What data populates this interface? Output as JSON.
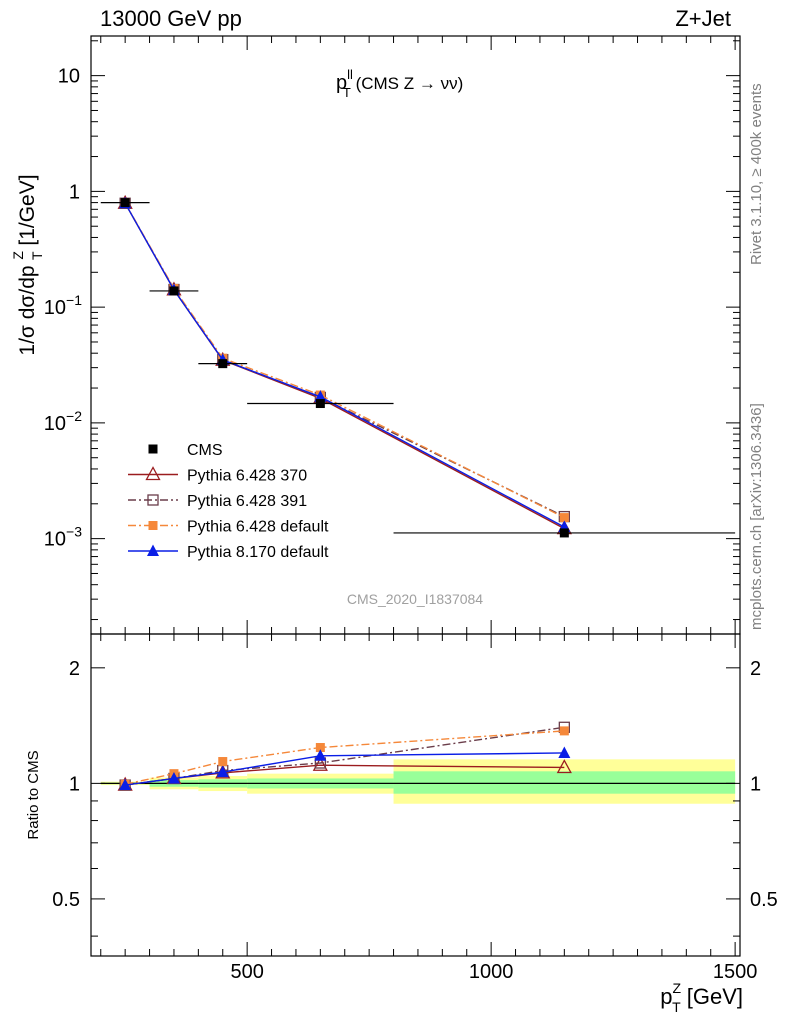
{
  "header": {
    "left": "13000 GeV pp",
    "right": "Z+Jet"
  },
  "side_labels": {
    "rivet": "Rivet 3.1.10, ≥ 400k events",
    "mcplots": "mcplots.cern.ch [arXiv:1306.3436]"
  },
  "analysis_id": "CMS_2020_I1837084",
  "chart_data": [
    {
      "type": "line",
      "panel": "main",
      "title_main": "p",
      "title_sup": "ll",
      "title_sub": "T",
      "title_rest": " (CMS Z → νν)",
      "ylabel": "1/σ dσ/dp_T^Z [1/GeV]",
      "yscale": "log",
      "ylim": [
        0.00015,
        22
      ],
      "xlim": [
        180,
        1510
      ],
      "ytick_labels": [
        {
          "value": 10,
          "base": "10",
          "exp": ""
        },
        {
          "value": 1,
          "base": "1",
          "exp": ""
        },
        {
          "value": 0.1,
          "base": "10",
          "exp": "−1"
        },
        {
          "value": 0.01,
          "base": "10",
          "exp": "−2"
        },
        {
          "value": 0.001,
          "base": "10",
          "exp": "−3"
        }
      ],
      "legend_position": "lower-left",
      "data": {
        "name": "CMS",
        "color": "#000000",
        "x": [
          250,
          350,
          450,
          650,
          1150
        ],
        "y": [
          0.8,
          0.138,
          0.0325,
          0.0147,
          0.00112
        ],
        "xerr": [
          [
            200,
            300
          ],
          [
            300,
            400
          ],
          [
            400,
            500
          ],
          [
            500,
            800
          ],
          [
            800,
            1500
          ]
        ]
      },
      "series": [
        {
          "name": "Pythia 6.428 370",
          "color": "#9b1c1f",
          "marker": "open-triangle",
          "dash": "solid",
          "x": [
            250,
            350,
            450,
            650,
            1150
          ],
          "y": [
            0.79,
            0.141,
            0.0348,
            0.0163,
            0.00122
          ]
        },
        {
          "name": "Pythia 6.428 391",
          "color": "#6a3d4a",
          "marker": "open-square",
          "dash": "dashdot",
          "x": [
            250,
            350,
            450,
            650,
            1150
          ],
          "y": [
            0.79,
            0.142,
            0.0352,
            0.0166,
            0.00155
          ]
        },
        {
          "name": "Pythia 6.428 default",
          "color": "#f5883a",
          "marker": "filled-square",
          "dash": "dashdot",
          "x": [
            250,
            350,
            450,
            650,
            1150
          ],
          "y": [
            0.795,
            0.145,
            0.0362,
            0.0174,
            0.00152
          ]
        },
        {
          "name": "Pythia 8.170 default",
          "color": "#0a1ee6",
          "marker": "filled-triangle",
          "dash": "solid",
          "x": [
            250,
            350,
            450,
            650,
            1150
          ],
          "y": [
            0.79,
            0.141,
            0.035,
            0.0168,
            0.00126
          ]
        }
      ]
    },
    {
      "type": "line",
      "panel": "ratio",
      "ylabel": "Ratio to CMS",
      "xlabel_main": "p",
      "xlabel_sup": "Z",
      "xlabel_sub": "T",
      "xlabel_rest": " [GeV]",
      "yscale": "log",
      "ylim": [
        0.355,
        2.45
      ],
      "xlim": [
        180,
        1510
      ],
      "xticks": [
        500,
        1000,
        1500
      ],
      "yticks": [
        0.5,
        1,
        2
      ],
      "bands": [
        {
          "x0": 200,
          "x1": 300,
          "yellow": [
            0.99,
            1.01
          ],
          "green": [
            0.995,
            1.005
          ]
        },
        {
          "x0": 300,
          "x1": 400,
          "yellow": [
            0.965,
            1.035
          ],
          "green": [
            0.98,
            1.02
          ]
        },
        {
          "x0": 400,
          "x1": 500,
          "yellow": [
            0.955,
            1.045
          ],
          "green": [
            0.975,
            1.025
          ]
        },
        {
          "x0": 500,
          "x1": 800,
          "yellow": [
            0.94,
            1.06
          ],
          "green": [
            0.97,
            1.03
          ]
        },
        {
          "x0": 800,
          "x1": 1500,
          "yellow": [
            0.885,
            1.155
          ],
          "green": [
            0.94,
            1.075
          ]
        }
      ],
      "series": [
        {
          "name": "Pythia 6.428 370",
          "color": "#9b1c1f",
          "marker": "open-triangle",
          "dash": "solid",
          "x": [
            250,
            350,
            450,
            650,
            1150
          ],
          "y": [
            0.99,
            1.03,
            1.065,
            1.115,
            1.1
          ]
        },
        {
          "name": "Pythia 6.428 391",
          "color": "#6a3d4a",
          "marker": "open-square",
          "dash": "dashdot",
          "x": [
            250,
            350,
            450,
            650,
            1150
          ],
          "y": [
            0.99,
            1.03,
            1.08,
            1.13,
            1.4
          ]
        },
        {
          "name": "Pythia 6.428 default",
          "color": "#f5883a",
          "marker": "filled-square",
          "dash": "dashdot",
          "x": [
            250,
            350,
            450,
            650,
            1150
          ],
          "y": [
            0.995,
            1.06,
            1.14,
            1.24,
            1.37
          ]
        },
        {
          "name": "Pythia 8.170 default",
          "color": "#0a1ee6",
          "marker": "filled-triangle",
          "dash": "solid",
          "x": [
            250,
            350,
            450,
            650,
            1150
          ],
          "y": [
            0.99,
            1.03,
            1.07,
            1.18,
            1.2
          ]
        }
      ]
    }
  ]
}
